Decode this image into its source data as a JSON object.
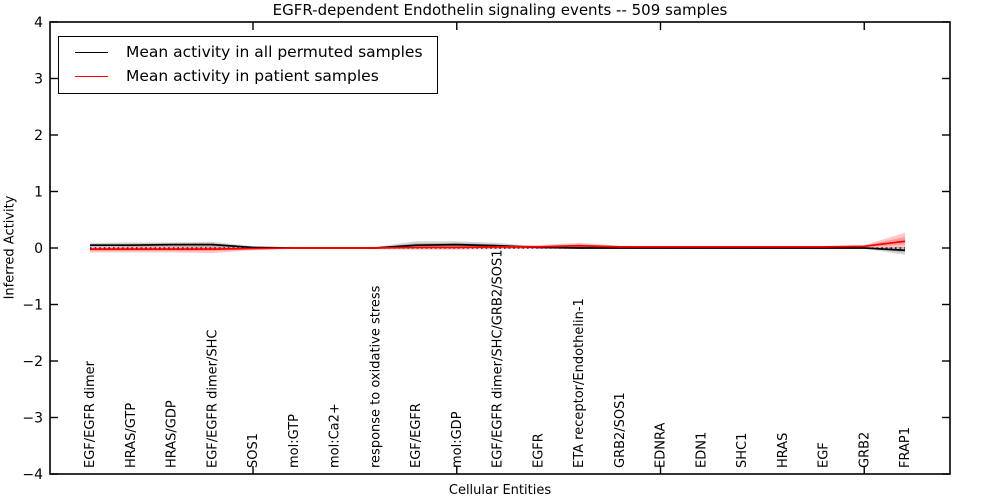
{
  "chart_data": {
    "type": "line",
    "title": "EGFR-dependent Endothelin signaling events -- 509 samples",
    "xlabel": "Cellular Entities",
    "ylabel": "Inferred Activity",
    "ylim": [
      -4,
      4
    ],
    "yticks": [
      -4,
      -3,
      -2,
      -1,
      0,
      1,
      2,
      3,
      4
    ],
    "xtick_positions": [
      5,
      10,
      15,
      20
    ],
    "grid": false,
    "legend_position": "upper left",
    "zero_line": {
      "value": 0,
      "style": "dotted",
      "color": "#000000"
    },
    "categories": [
      "EGF/EGFR dimer",
      "HRAS/GTP",
      "HRAS/GDP",
      "EGF/EGFR dimer/SHC",
      "SOS1",
      "mol:GTP",
      "mol:Ca2+",
      "response to oxidative stress",
      "EGF/EGFR",
      "mol:GDP",
      "EGF/EGFR dimer/SHC/GRB2/SOS1",
      "EGFR",
      "ETA receptor/Endothelin-1",
      "GRB2/SOS1",
      "EDNRA",
      "EDN1",
      "SHC1",
      "HRAS",
      "EGF",
      "GRB2",
      "FRAP1"
    ],
    "series": [
      {
        "name": "Mean activity in all permuted samples",
        "color": "#000000",
        "band_color": "#000000",
        "mean": [
          0.05,
          0.05,
          0.06,
          0.06,
          0.01,
          0.0,
          0.0,
          0.0,
          0.05,
          0.06,
          0.04,
          0.01,
          0.0,
          0.0,
          0.0,
          0.0,
          0.0,
          0.0,
          0.0,
          0.0,
          -0.04
        ],
        "upper": [
          0.09,
          0.1,
          0.1,
          0.11,
          0.03,
          0.01,
          0.01,
          0.02,
          0.12,
          0.12,
          0.09,
          0.03,
          0.01,
          0.01,
          0.01,
          0.01,
          0.01,
          0.01,
          0.01,
          0.01,
          0.02
        ],
        "lower": [
          0.01,
          0.01,
          0.01,
          0.0,
          -0.01,
          -0.01,
          -0.01,
          -0.01,
          0.0,
          0.0,
          -0.01,
          -0.01,
          -0.01,
          -0.01,
          -0.01,
          -0.01,
          -0.01,
          -0.01,
          -0.01,
          -0.01,
          -0.12
        ]
      },
      {
        "name": "Mean activity in patient samples",
        "color": "#ff0000",
        "band_color": "#ff0000",
        "mean": [
          -0.02,
          -0.02,
          -0.02,
          -0.02,
          -0.01,
          0.0,
          0.0,
          0.0,
          0.01,
          0.01,
          0.02,
          0.02,
          0.04,
          0.02,
          0.02,
          0.02,
          0.02,
          0.02,
          0.02,
          0.03,
          0.12
        ],
        "upper": [
          0.02,
          0.03,
          0.03,
          0.03,
          0.01,
          0.01,
          0.01,
          0.01,
          0.04,
          0.04,
          0.05,
          0.05,
          0.09,
          0.04,
          0.03,
          0.03,
          0.03,
          0.03,
          0.03,
          0.05,
          0.27
        ],
        "lower": [
          -0.08,
          -0.08,
          -0.08,
          -0.09,
          -0.04,
          -0.01,
          -0.01,
          -0.02,
          -0.03,
          -0.03,
          -0.02,
          -0.01,
          0.0,
          0.0,
          0.0,
          0.0,
          0.0,
          0.0,
          0.0,
          0.0,
          0.0
        ]
      }
    ]
  }
}
